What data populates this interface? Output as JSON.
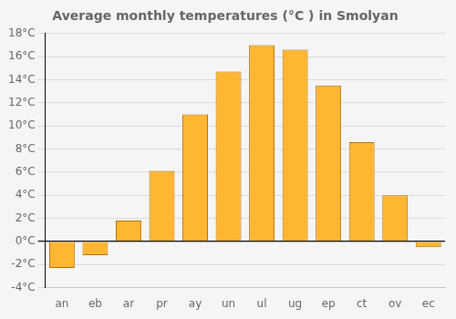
{
  "chart_data": {
    "type": "bar",
    "title": "Average monthly temperatures (°C ) in Smolyan",
    "categories": [
      "an",
      "eb",
      "ar",
      "pr",
      "ay",
      "un",
      "ul",
      "ug",
      "ep",
      "ct",
      "ov",
      "ec"
    ],
    "values": [
      -2.3,
      -1.2,
      1.8,
      6.1,
      11.0,
      14.7,
      17.0,
      16.6,
      13.5,
      8.6,
      4.0,
      -0.5
    ],
    "color": "#FFB733",
    "ylim": [
      -4,
      18
    ],
    "yticks": [
      {
        "value": -4,
        "label": "-4°C"
      },
      {
        "value": -2,
        "label": "-2°C"
      },
      {
        "value": 0,
        "label": "0°C"
      },
      {
        "value": 2,
        "label": "2°C"
      },
      {
        "value": 4,
        "label": "4°C"
      },
      {
        "value": 6,
        "label": "6°C"
      },
      {
        "value": 8,
        "label": "8°C"
      },
      {
        "value": 10,
        "label": "10°C"
      },
      {
        "value": 12,
        "label": "12°C"
      },
      {
        "value": 14,
        "label": "14°C"
      },
      {
        "value": 16,
        "label": "16°C"
      },
      {
        "value": 18,
        "label": "18°C"
      }
    ],
    "grid": true
  }
}
